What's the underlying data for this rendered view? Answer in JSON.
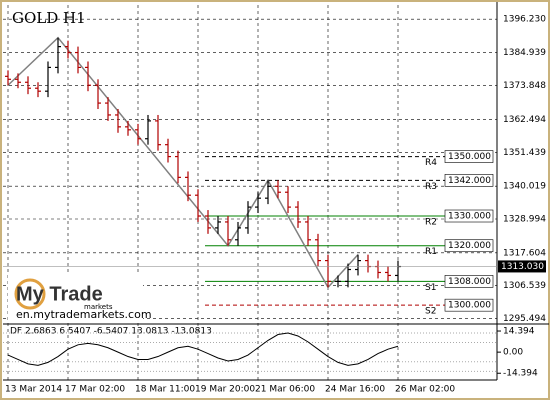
{
  "chart_data": [
    {
      "type": "ohlc",
      "title": "GOLD H1",
      "categories": [
        "13 Mar 2014",
        null,
        null,
        null,
        null,
        null,
        "17 Mar 02:00",
        null,
        null,
        null,
        null,
        null,
        null,
        "18 Mar 11:00",
        null,
        null,
        null,
        null,
        null,
        "19 Mar 20:00",
        null,
        null,
        null,
        null,
        null,
        "21 Mar 06:00",
        null,
        null,
        null,
        null,
        null,
        null,
        "24 Mar 16:00",
        null,
        null,
        null,
        null,
        null,
        null,
        "26 Mar 02:00"
      ],
      "open": [
        1377,
        1376,
        1375,
        1373,
        1372,
        1380,
        1387,
        1385,
        1380,
        1374,
        1368,
        1364,
        1360,
        1359,
        1356,
        1362,
        1354,
        1350,
        1343,
        1337,
        1330,
        1326,
        1328,
        1322,
        1326,
        1333,
        1336,
        1340,
        1338,
        1333,
        1328,
        1322,
        1315,
        1308,
        1308,
        1312,
        1315,
        1313,
        1311,
        1310
      ],
      "high": [
        1379,
        1378,
        1377,
        1375,
        1382,
        1390,
        1389,
        1387,
        1382,
        1376,
        1370,
        1366,
        1362,
        1361,
        1364,
        1364,
        1356,
        1352,
        1345,
        1339,
        1332,
        1330,
        1330,
        1328,
        1335,
        1338,
        1342,
        1342,
        1340,
        1335,
        1330,
        1324,
        1317,
        1310,
        1314,
        1317,
        1317,
        1315,
        1313,
        1315
      ],
      "low": [
        1374,
        1373,
        1371,
        1370,
        1370,
        1378,
        1383,
        1378,
        1372,
        1366,
        1362,
        1358,
        1357,
        1354,
        1354,
        1352,
        1348,
        1341,
        1335,
        1328,
        1324,
        1324,
        1320,
        1320,
        1324,
        1331,
        1334,
        1336,
        1331,
        1326,
        1320,
        1313,
        1306,
        1306,
        1306,
        1310,
        1311,
        1309,
        1308,
        1308
      ],
      "close": [
        1376,
        1375,
        1373,
        1372,
        1380,
        1387,
        1385,
        1380,
        1374,
        1368,
        1364,
        1360,
        1359,
        1356,
        1362,
        1354,
        1350,
        1343,
        1337,
        1330,
        1326,
        1328,
        1322,
        1326,
        1333,
        1336,
        1340,
        1338,
        1333,
        1328,
        1322,
        1315,
        1308,
        1308,
        1312,
        1315,
        1313,
        1311,
        1310,
        1313
      ],
      "up_color": "#000000",
      "down_color": "#b00000",
      "zigzag": {
        "x": [
          0,
          5,
          22,
          26,
          32,
          35
        ],
        "values": [
          1374,
          1390,
          1320,
          1342,
          1306,
          1317
        ],
        "color": "#808080"
      },
      "levels": {
        "names": [
          "R4",
          "R3",
          "R2",
          "R1",
          "S1",
          "S2"
        ],
        "values": [
          1350,
          1342,
          1330,
          1320,
          1308,
          1300
        ],
        "value_labels": [
          "1350.000",
          "1342.000",
          "1330.000",
          "1320.000",
          "1308.000",
          "1300.000"
        ],
        "colors": [
          "#000000",
          "#000000",
          "#008000",
          "#008000",
          "#008000",
          "#b00000"
        ]
      },
      "last": {
        "value": 1313.03,
        "label": "1313.030"
      },
      "ylim": [
        1294,
        1401
      ],
      "yticks": [
        {
          "value": 1396.23,
          "label": "1396.230"
        },
        1384.939,
        1373.848,
        1362.494,
        1351.439,
        1340.019,
        1328.994,
        1317.604,
        1306.539,
        1295.494
      ],
      "grid": true
    },
    {
      "type": "line",
      "title": "DF 2.6863 6.5407 -6.5407 13.0813 -13.0813",
      "values": [
        -2,
        -5,
        -8,
        -9,
        -7,
        -3,
        2,
        5,
        6,
        5,
        3,
        0,
        -3,
        -5,
        -5,
        -3,
        0,
        3,
        4,
        2,
        -1,
        -4,
        -6,
        -5,
        -2,
        3,
        8,
        12,
        13,
        11,
        7,
        2,
        -3,
        -7,
        -9,
        -8,
        -5,
        -1,
        2,
        4
      ],
      "bands": [
        6.5407,
        -6.5407,
        13.0813,
        -13.0813
      ],
      "color": "#000000",
      "ylim": [
        -19,
        18.5
      ],
      "yticks": [
        14.394,
        {
          "value": 0,
          "label": "0.00"
        },
        -14.394
      ]
    }
  ],
  "logo": {
    "name": "My Trade",
    "sub": "markets",
    "url": "en.mytrademarkets.com"
  }
}
